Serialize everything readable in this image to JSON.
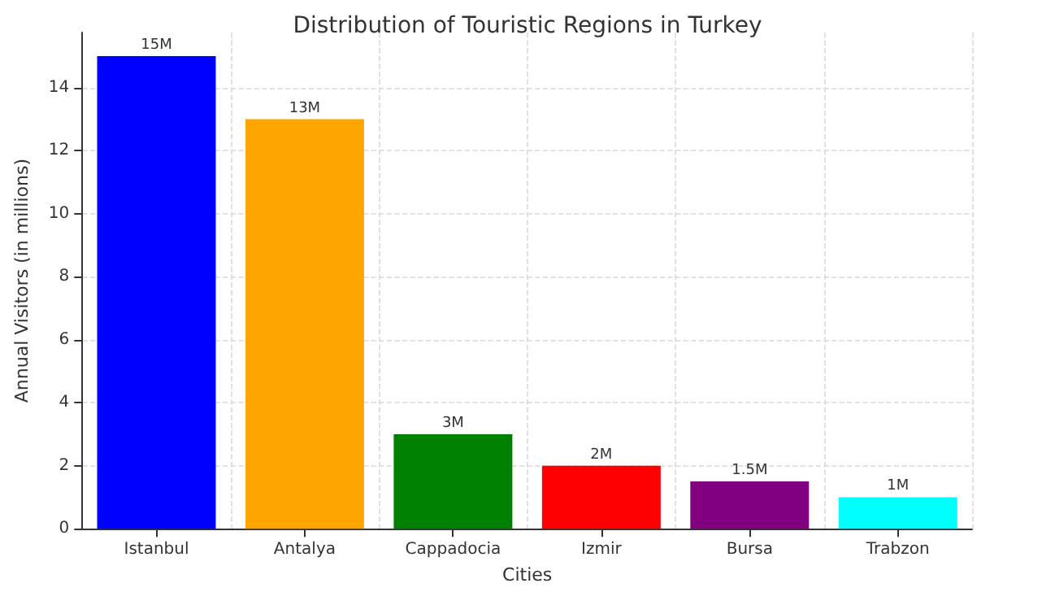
{
  "chart_data": {
    "type": "bar",
    "title": "Distribution of Touristic Regions in Turkey",
    "xlabel": "Cities",
    "ylabel": "Annual Visitors (in millions)",
    "categories": [
      "Istanbul",
      "Antalya",
      "Cappadocia",
      "Izmir",
      "Bursa",
      "Trabzon"
    ],
    "values": [
      15,
      13,
      3,
      2,
      1.5,
      1
    ],
    "colors": [
      "#0000ff",
      "#ffa500",
      "#008000",
      "#ff0000",
      "#800080",
      "#00ffff"
    ],
    "value_labels": [
      "15M",
      "13M",
      "3M",
      "2M",
      "1.5M",
      "1M"
    ],
    "ylim": [
      0,
      15.75
    ],
    "yticks": [
      0,
      2,
      4,
      6,
      8,
      10,
      12,
      14
    ],
    "grid": true
  }
}
